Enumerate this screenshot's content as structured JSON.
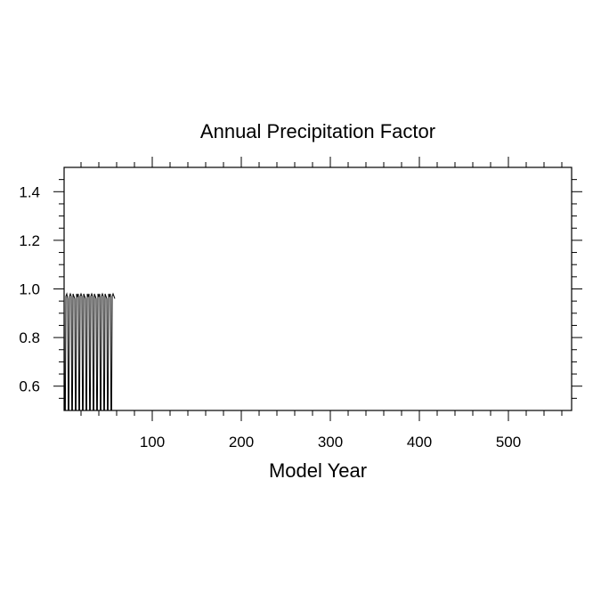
{
  "chart_data": {
    "type": "line",
    "title": "Annual Precipitation Factor",
    "xlabel": "Model Year",
    "ylabel": "",
    "xlim": [
      1,
      571
    ],
    "ylim": [
      0.5,
      1.5
    ],
    "xticks": [
      100,
      200,
      300,
      400,
      500
    ],
    "xtick_labels": [
      "100",
      "200",
      "300",
      "400",
      "500"
    ],
    "yticks": [
      0.6,
      0.8,
      1.0,
      1.2,
      1.4
    ],
    "ytick_labels": [
      "0.6",
      "0.8",
      "1.0",
      "1.2",
      "1.4"
    ],
    "grid": false,
    "legend": "none",
    "line_color": "#000000",
    "series": [
      {
        "x": [
          1,
          2,
          3,
          4,
          5,
          6,
          7,
          8,
          9,
          10,
          11,
          12,
          13,
          14,
          15,
          16,
          17,
          18,
          19,
          20,
          21,
          22,
          23,
          24,
          25,
          26,
          27,
          28,
          29,
          30,
          31,
          32,
          33,
          34,
          35,
          36,
          37,
          38,
          39,
          40,
          41,
          42,
          43,
          44,
          45,
          46,
          47,
          48,
          49,
          50,
          51,
          52,
          53,
          54,
          55,
          56,
          57,
          58
        ],
        "values": [
          0.98,
          0.2,
          0.97,
          0.98,
          0.96,
          0.2,
          0.97,
          0.98,
          0.97,
          0.2,
          0.98,
          0.97,
          0.96,
          0.2,
          0.98,
          0.97,
          0.98,
          0.2,
          0.97,
          0.98,
          0.97,
          0.2,
          0.98,
          0.97,
          0.96,
          0.2,
          0.98,
          0.97,
          0.98,
          0.2,
          0.97,
          0.98,
          0.97,
          0.2,
          0.98,
          0.97,
          0.96,
          0.2,
          0.98,
          0.97,
          0.98,
          0.2,
          0.97,
          0.98,
          0.97,
          0.2,
          0.98,
          0.97,
          0.96,
          0.2,
          0.98,
          0.97,
          0.98,
          0.2,
          0.97,
          0.98,
          0.97,
          0.96
        ]
      }
    ]
  }
}
